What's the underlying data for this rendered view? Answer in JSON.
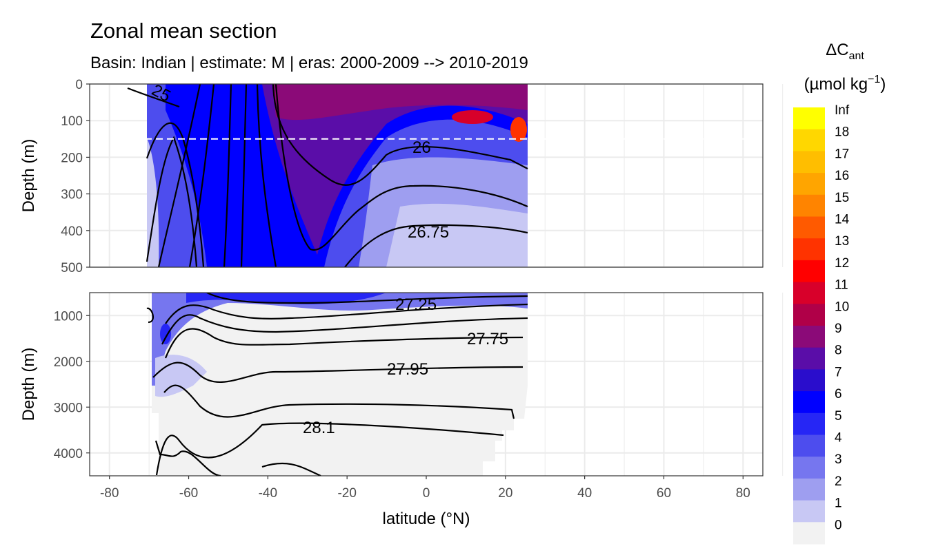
{
  "chart_data": {
    "type": "heatmap",
    "title": "Zonal mean section",
    "subtitle": "Basin: Indian | estimate: M  | eras: 2000-2009 --> 2010-2019",
    "xlabel": "latitude (°N)",
    "ylabel": "Depth (m)",
    "xlim": [
      -85,
      85
    ],
    "x_ticks": [
      "-80",
      "-60",
      "-40",
      "-20",
      "0",
      "20",
      "40",
      "60",
      "80"
    ],
    "data_lat_range": [
      -70,
      25
    ],
    "reference_depth_line": 150,
    "grid": true,
    "panels": [
      {
        "name": "upper",
        "ylim": [
          0,
          500
        ],
        "y_ticks": [
          "0",
          "100",
          "200",
          "300",
          "400",
          "500"
        ],
        "contour_labels": [
          "25",
          "26",
          "26.75"
        ]
      },
      {
        "name": "lower",
        "ylim": [
          500,
          4500
        ],
        "y_ticks": [
          "1000",
          "2000",
          "3000",
          "4000"
        ],
        "contour_labels": [
          "27.25",
          "27.75",
          "27.95",
          "28.1"
        ]
      }
    ],
    "legend": {
      "position": "right",
      "title_main": "ΔC",
      "title_sub": "ant",
      "unit_main": "(µmol kg",
      "unit_sup": "−1",
      "unit_close": ")",
      "labels": [
        "Inf",
        "18",
        "17",
        "16",
        "15",
        "14",
        "13",
        "12",
        "11",
        "10",
        "9",
        "8",
        "7",
        "6",
        "5",
        "4",
        "3",
        "2",
        "1",
        "0"
      ],
      "colors": [
        "#ffff00",
        "#ffd700",
        "#ffbe00",
        "#ffa500",
        "#ff8400",
        "#ff5a00",
        "#ff3300",
        "#ff0000",
        "#d8002a",
        "#b00048",
        "#8b0a78",
        "#5a0da8",
        "#2a0dcc",
        "#0000ff",
        "#2626f5",
        "#4d4dee",
        "#7676ef",
        "#9e9ef0",
        "#c8c8f4",
        "#f2f2f2"
      ]
    },
    "colors": {
      "land": "#f2f2f2",
      "panel_background": "#ffffff",
      "grid": "#ebebeb",
      "contour": "#000000",
      "ref_line": "#ffffff"
    }
  }
}
